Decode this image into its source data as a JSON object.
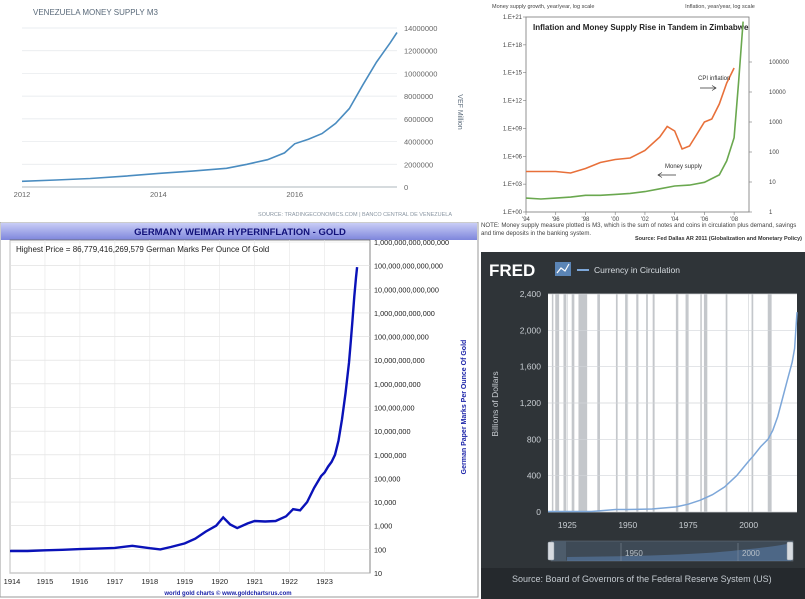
{
  "chart_data": [
    {
      "id": "venezuela",
      "type": "line",
      "title": "VENEZUELA MONEY SUPPLY M3",
      "y_unit": "VEF Million",
      "source": "SOURCE: TRADINGECONOMICS.COM | BANCO CENTRAL DE VENEZUELA",
      "xlim": [
        2012,
        2017.5
      ],
      "ylim": [
        0,
        14000000
      ],
      "x_ticks": [
        {
          "v": 2012,
          "label": "2012"
        },
        {
          "v": 2014,
          "label": "2014"
        },
        {
          "v": 2016,
          "label": "2016"
        }
      ],
      "y_ticks": [
        {
          "v": 0,
          "label": "0"
        },
        {
          "v": 2000000,
          "label": "2000000"
        },
        {
          "v": 4000000,
          "label": "4000000"
        },
        {
          "v": 6000000,
          "label": "6000000"
        },
        {
          "v": 8000000,
          "label": "8000000"
        },
        {
          "v": 10000000,
          "label": "10000000"
        },
        {
          "v": 12000000,
          "label": "12000000"
        },
        {
          "v": 14000000,
          "label": "14000000"
        }
      ],
      "grid": true,
      "color": "#4a8cc0",
      "x": [
        2012,
        2012.5,
        2013,
        2013.5,
        2014,
        2014.5,
        2015,
        2015.3,
        2015.6,
        2015.85,
        2016,
        2016.2,
        2016.4,
        2016.6,
        2016.8,
        2017,
        2017.2,
        2017.4,
        2017.5
      ],
      "values": [
        500000,
        620000,
        750000,
        950000,
        1200000,
        1400000,
        1650000,
        2000000,
        2400000,
        3000000,
        3800000,
        4200000,
        4700000,
        5600000,
        6900000,
        9000000,
        11000000,
        12700000,
        13600000
      ]
    },
    {
      "id": "zimbabwe",
      "type": "line",
      "title": "Inflation and Money Supply Rise in Tandem in Zimbabwe",
      "left_axis_caption": "Money supply growth, year/year, log scale",
      "right_axis_caption": "Inflation, year/year, log scale",
      "note": "NOTE: Money supply measure plotted is M3, which is the sum of notes and coins in circulation plus demand, savings and time deposits in the banking system.",
      "source": "Source: Fed Dallas AR 2011 (Globalization and Monetary Policy)",
      "xlim": [
        1994,
        2009
      ],
      "x_ticks": [
        {
          "v": 1994,
          "label": "'94"
        },
        {
          "v": 1996,
          "label": "'96"
        },
        {
          "v": 1998,
          "label": "'98"
        },
        {
          "v": 2000,
          "label": "'00"
        },
        {
          "v": 2002,
          "label": "'02"
        },
        {
          "v": 2004,
          "label": "'04"
        },
        {
          "v": 2006,
          "label": "'06"
        },
        {
          "v": 2008,
          "label": "'08"
        }
      ],
      "ylim_left_log10": [
        0,
        21
      ],
      "y_ticks_left": [
        {
          "v": 0,
          "label": "1.E+00"
        },
        {
          "v": 3,
          "label": "1.E+03"
        },
        {
          "v": 6,
          "label": "1.E+06"
        },
        {
          "v": 9,
          "label": "1.E+09"
        },
        {
          "v": 12,
          "label": "1.E+12"
        },
        {
          "v": 15,
          "label": "1.E+15"
        },
        {
          "v": 18,
          "label": "1.E+18"
        },
        {
          "v": 21,
          "label": "1.E+21"
        }
      ],
      "ylim_right_log10": [
        0,
        6.5
      ],
      "y_ticks_right": [
        {
          "v": 0,
          "label": "1"
        },
        {
          "v": 1,
          "label": "10"
        },
        {
          "v": 2,
          "label": "100"
        },
        {
          "v": 3,
          "label": "1000"
        },
        {
          "v": 4,
          "label": "10000"
        },
        {
          "v": 5,
          "label": "100000"
        }
      ],
      "series": [
        {
          "name": "CPI inflation",
          "axis": "right",
          "color": "#e8703a",
          "x": [
            1994,
            1995,
            1996,
            1997,
            1998,
            1999,
            2000,
            2001,
            2002,
            2003,
            2003.5,
            2004,
            2004.5,
            2005,
            2005.5,
            2006,
            2006.5,
            2007,
            2007.5,
            2008
          ],
          "values_log10": [
            1.35,
            1.35,
            1.35,
            1.3,
            1.45,
            1.65,
            1.75,
            1.8,
            2.05,
            2.5,
            2.85,
            2.7,
            2.1,
            2.2,
            2.6,
            3.0,
            3.1,
            3.6,
            4.3,
            4.8
          ]
        },
        {
          "name": "Money supply",
          "axis": "left",
          "color": "#6aa84f",
          "x": [
            1994,
            1995,
            1996,
            1997,
            1998,
            1999,
            2000,
            2001,
            2002,
            2003,
            2004,
            2005,
            2006,
            2007,
            2007.5,
            2008,
            2008.3,
            2008.6
          ],
          "values_log10": [
            1.5,
            1.4,
            1.5,
            1.6,
            1.8,
            1.8,
            1.9,
            2.0,
            2.2,
            2.5,
            2.8,
            2.9,
            3.2,
            4.0,
            5.5,
            8.0,
            14.0,
            20.5
          ]
        }
      ],
      "annotations": [
        {
          "text": "CPI inflation",
          "arrow": "right"
        },
        {
          "text": "Money supply",
          "arrow": "left"
        }
      ]
    },
    {
      "id": "weimar",
      "type": "line",
      "title": "GERMANY WEIMAR HYPERINFLATION - GOLD",
      "annotation": "Highest Price = 86,779,416,269,579 German Marks Per Ounce Of Gold",
      "ylabel": "German Paper Marks Per Ounce Of Gold",
      "footer": "world gold charts © www.goldchartsrus.com",
      "xlim": [
        1914,
        1924.3
      ],
      "x_ticks": [
        {
          "v": 1914,
          "label": "1914"
        },
        {
          "v": 1915,
          "label": "1915"
        },
        {
          "v": 1916,
          "label": "1916"
        },
        {
          "v": 1917,
          "label": "1917"
        },
        {
          "v": 1918,
          "label": "1918"
        },
        {
          "v": 1919,
          "label": "1919"
        },
        {
          "v": 1920,
          "label": "1920"
        },
        {
          "v": 1921,
          "label": "1921"
        },
        {
          "v": 1922,
          "label": "1922"
        },
        {
          "v": 1923,
          "label": "1923"
        }
      ],
      "log_scale": true,
      "ylim_log10": [
        1,
        15
      ],
      "y_ticks": [
        {
          "v": 1,
          "label": "10"
        },
        {
          "v": 2,
          "label": "100"
        },
        {
          "v": 3,
          "label": "1,000"
        },
        {
          "v": 4,
          "label": "10,000"
        },
        {
          "v": 5,
          "label": "100,000"
        },
        {
          "v": 6,
          "label": "1,000,000"
        },
        {
          "v": 7,
          "label": "10,000,000"
        },
        {
          "v": 8,
          "label": "100,000,000"
        },
        {
          "v": 9,
          "label": "1,000,000,000"
        },
        {
          "v": 10,
          "label": "10,000,000,000"
        },
        {
          "v": 11,
          "label": "100,000,000,000"
        },
        {
          "v": 12,
          "label": "1,000,000,000,000"
        },
        {
          "v": 13,
          "label": "10,000,000,000,000"
        },
        {
          "v": 14,
          "label": "100,000,000,000,000"
        },
        {
          "v": 15,
          "label": "1,000,000,000,000,000"
        }
      ],
      "grid": true,
      "color": "#0a12b8",
      "x": [
        1914,
        1914.5,
        1915,
        1915.5,
        1916,
        1916.5,
        1917,
        1917.5,
        1918,
        1918.3,
        1918.6,
        1919,
        1919.3,
        1919.6,
        1919.9,
        1920.1,
        1920.3,
        1920.5,
        1920.8,
        1921,
        1921.3,
        1921.6,
        1921.9,
        1922.1,
        1922.3,
        1922.5,
        1922.7,
        1922.9,
        1923,
        1923.1,
        1923.2,
        1923.3,
        1923.4,
        1923.5,
        1923.6,
        1923.7,
        1923.75,
        1923.8,
        1923.85,
        1923.9,
        1923.93
      ],
      "values_log10": [
        1.93,
        1.93,
        1.96,
        1.98,
        2.01,
        2.03,
        2.06,
        2.15,
        2.05,
        2.0,
        2.1,
        2.25,
        2.45,
        2.75,
        3.0,
        3.35,
        3.05,
        2.9,
        3.1,
        3.2,
        3.18,
        3.2,
        3.4,
        3.7,
        3.65,
        4.0,
        4.6,
        5.1,
        5.25,
        5.5,
        5.7,
        6.0,
        6.6,
        7.5,
        8.6,
        9.9,
        10.8,
        11.7,
        12.7,
        13.5,
        13.94
      ]
    },
    {
      "id": "fred",
      "type": "line",
      "brand": "FRED",
      "series_name": "Currency in Circulation",
      "ylabel": "Billions of Dollars",
      "source": "Source: Board of Governors of the Federal Reserve System (US)",
      "xlim": [
        1917,
        2020
      ],
      "ylim": [
        0,
        2400
      ],
      "x_ticks": [
        {
          "v": 1925,
          "label": "1925"
        },
        {
          "v": 1950,
          "label": "1950"
        },
        {
          "v": 1975,
          "label": "1975"
        },
        {
          "v": 2000,
          "label": "2000"
        }
      ],
      "y_ticks": [
        {
          "v": 0,
          "label": "0"
        },
        {
          "v": 400,
          "label": "400"
        },
        {
          "v": 800,
          "label": "800"
        },
        {
          "v": 1200,
          "label": "1,200"
        },
        {
          "v": 1600,
          "label": "1,600"
        },
        {
          "v": 2000,
          "label": "2,000"
        },
        {
          "v": 2400,
          "label": "2,400"
        }
      ],
      "grid": true,
      "color": "#7da7d9",
      "recession_bands": [
        [
          1918.6,
          1919.2
        ],
        [
          1920.0,
          1921.6
        ],
        [
          1923.4,
          1924.6
        ],
        [
          1926.8,
          1927.9
        ],
        [
          1929.6,
          1933.2
        ],
        [
          1937.4,
          1938.5
        ],
        [
          1945.1,
          1945.8
        ],
        [
          1948.9,
          1949.8
        ],
        [
          1953.5,
          1954.4
        ],
        [
          1957.6,
          1958.3
        ],
        [
          1960.3,
          1961.1
        ],
        [
          1969.9,
          1970.9
        ],
        [
          1973.9,
          1975.2
        ],
        [
          1980.0,
          1980.6
        ],
        [
          1981.5,
          1982.9
        ],
        [
          1990.5,
          1991.2
        ],
        [
          2001.2,
          2001.9
        ],
        [
          2007.9,
          2009.5
        ]
      ],
      "x": [
        1917,
        1925,
        1935,
        1945,
        1950,
        1960,
        1970,
        1975,
        1980,
        1985,
        1990,
        1995,
        2000,
        2002,
        2005,
        2008,
        2010,
        2012,
        2014,
        2016,
        2018,
        2019,
        2020
      ],
      "values": [
        5,
        5,
        6,
        28,
        28,
        33,
        56,
        86,
        130,
        190,
        275,
        400,
        560,
        620,
        720,
        800,
        900,
        1050,
        1250,
        1450,
        1650,
        1800,
        2200
      ],
      "range_labels": [
        "1950",
        "2000"
      ]
    }
  ]
}
